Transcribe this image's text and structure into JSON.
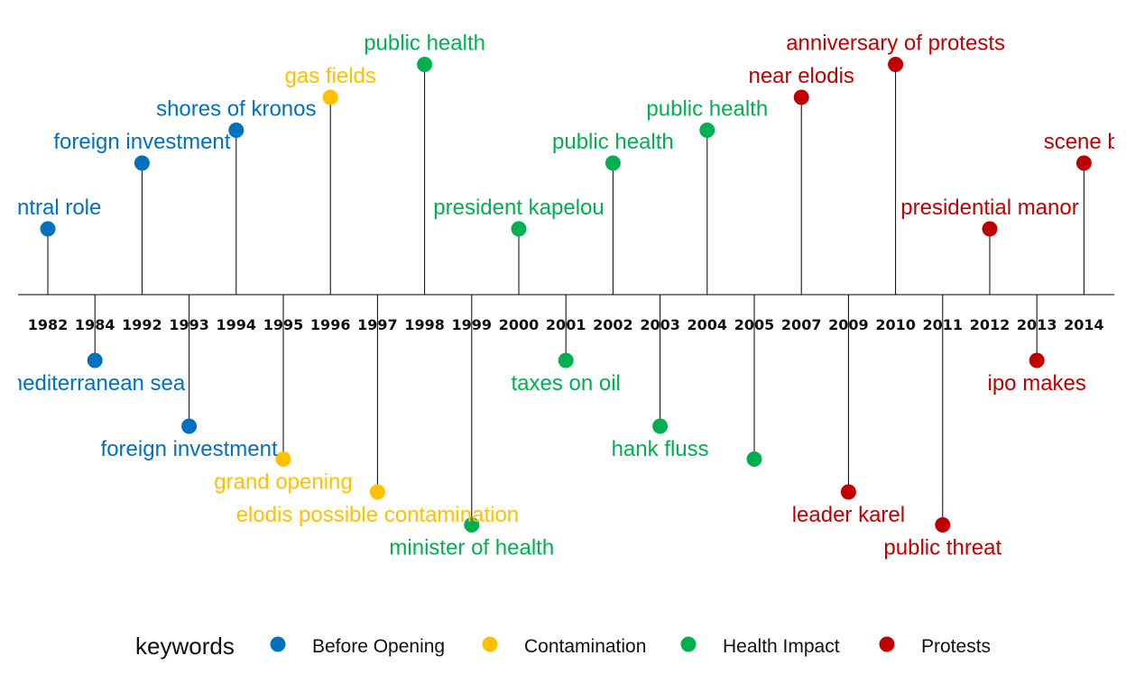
{
  "chart_data": {
    "type": "timeline",
    "title": "",
    "legend": {
      "title": "keywords",
      "position": "bottom",
      "entries": [
        {
          "name": "Before Opening",
          "color": "#0070C0"
        },
        {
          "name": "Contamination",
          "color": "#FFC000"
        },
        {
          "name": "Health  Impact",
          "color": "#00B050"
        },
        {
          "name": "Protests",
          "color": "#C00000"
        }
      ]
    },
    "years": [
      "1982",
      "1984",
      "1992",
      "1993",
      "1994",
      "1995",
      "1996",
      "1997",
      "1998",
      "1999",
      "2000",
      "2001",
      "2002",
      "2003",
      "2004",
      "2005",
      "2007",
      "2009",
      "2010",
      "2011",
      "2012",
      "2013",
      "2014"
    ],
    "events": [
      {
        "year": "1982",
        "label": "central role",
        "category": "Before Opening",
        "height": 2
      },
      {
        "year": "1984",
        "label": "mediterranean sea",
        "category": "Before Opening",
        "height": -2
      },
      {
        "year": "1992",
        "label": "foreign investment",
        "category": "Before Opening",
        "height": 4
      },
      {
        "year": "1993",
        "label": "foreign investment",
        "category": "Before Opening",
        "height": -4
      },
      {
        "year": "1994",
        "label": "shores of kronos",
        "category": "Before Opening",
        "height": 5
      },
      {
        "year": "1995",
        "label": "grand opening",
        "category": "Contamination",
        "height": -5
      },
      {
        "year": "1996",
        "label": "gas fields",
        "category": "Contamination",
        "height": 6
      },
      {
        "year": "1997",
        "label": "elodis possible contamination",
        "category": "Contamination",
        "height": -6
      },
      {
        "year": "1998",
        "label": "public health",
        "category": "Health  Impact",
        "height": 7
      },
      {
        "year": "1999",
        "label": "minister of health",
        "category": "Health  Impact",
        "height": -7
      },
      {
        "year": "2000",
        "label": "president kapelou",
        "category": "Health  Impact",
        "height": 2
      },
      {
        "year": "2001",
        "label": "taxes on oil",
        "category": "Health  Impact",
        "height": -2
      },
      {
        "year": "2002",
        "label": "public health",
        "category": "Health  Impact",
        "height": 4
      },
      {
        "year": "2003",
        "label": "hank fluss",
        "category": "Health  Impact",
        "height": -4
      },
      {
        "year": "2004",
        "label": "public health",
        "category": "Health  Impact",
        "height": 5
      },
      {
        "year": "2005",
        "label": "",
        "category": "Health  Impact",
        "height": -5
      },
      {
        "year": "2007",
        "label": "near elodis",
        "category": "Protests",
        "height": 6
      },
      {
        "year": "2009",
        "label": "leader karel",
        "category": "Protests",
        "height": -6
      },
      {
        "year": "2010",
        "label": "anniversary of protests",
        "category": "Protests",
        "height": 7
      },
      {
        "year": "2011",
        "label": "public threat",
        "category": "Protests",
        "height": -7
      },
      {
        "year": "2012",
        "label": "presidential manor",
        "category": "Protests",
        "height": 2
      },
      {
        "year": "2013",
        "label": "ipo makes",
        "category": "Protests",
        "height": -2
      },
      {
        "year": "2014",
        "label": "scene bl",
        "category": "Protests",
        "height": 4
      }
    ],
    "grid": false
  }
}
